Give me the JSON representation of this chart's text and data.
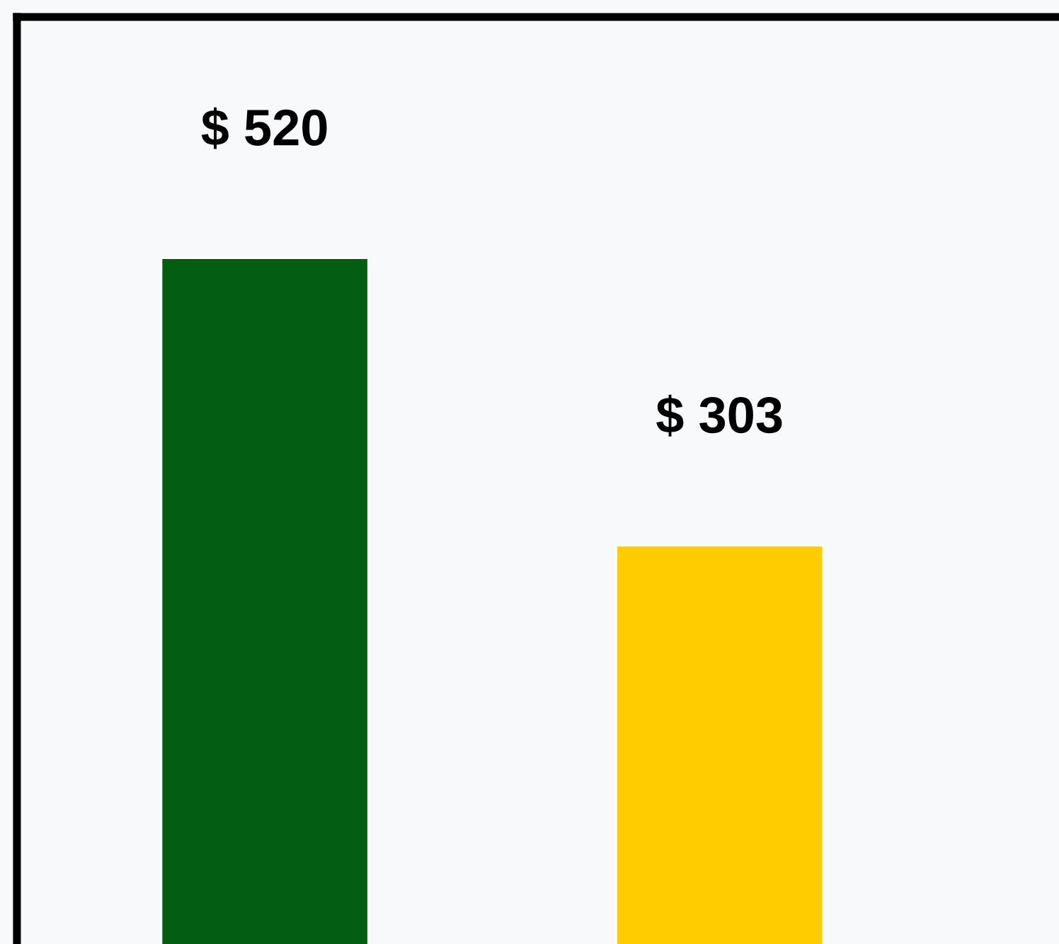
{
  "chart_data": {
    "type": "bar",
    "categories": [
      null,
      null
    ],
    "values": [
      520,
      303
    ],
    "colors": [
      "#035e12",
      "#ffcc00"
    ],
    "value_labels": [
      "$ 520",
      "$ 303"
    ]
  }
}
